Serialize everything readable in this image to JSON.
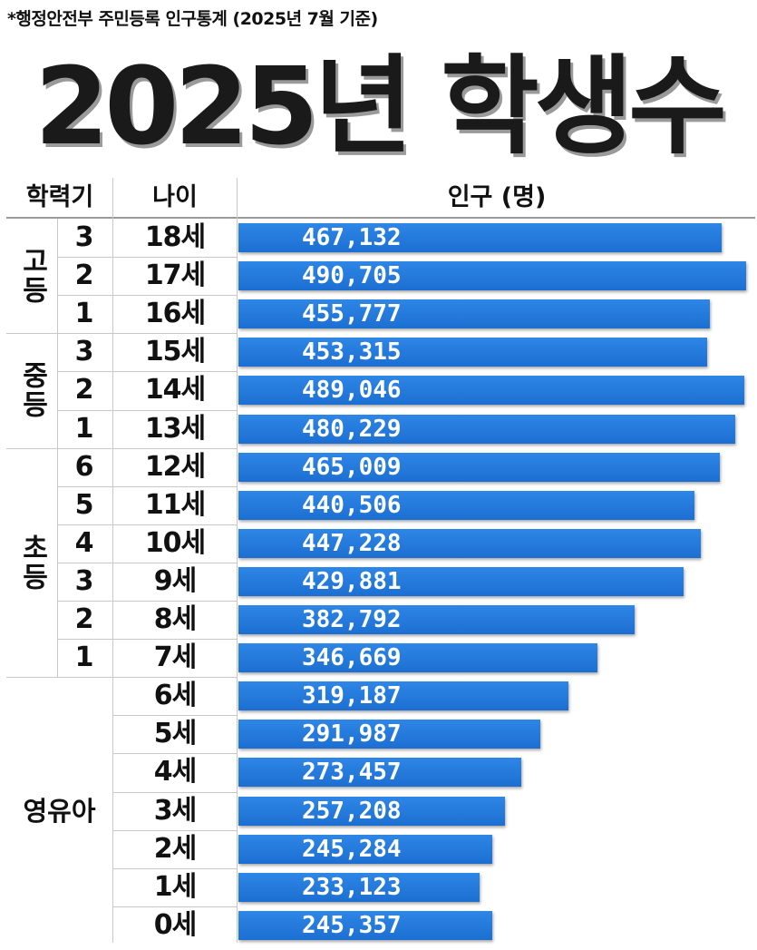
{
  "source_note": "*행정안전부 주민등록 인구통계 (2025년 7월 기준)",
  "title": "2025년 학생수",
  "table": {
    "headers": {
      "grade_level": "학력기",
      "age": "나이",
      "population": "인구 (명)"
    },
    "groups": [
      {
        "label": "고등",
        "vertical": true
      },
      {
        "label": "중등",
        "vertical": true
      },
      {
        "label": "초등",
        "vertical": true
      },
      {
        "label": "영유아",
        "vertical": false
      }
    ]
  },
  "chart_data": {
    "type": "bar",
    "orientation": "horizontal",
    "title": "2025년 학생수",
    "xlabel": "인구 (명)",
    "ylabel": "나이",
    "xlim": [
      0,
      490705
    ],
    "categories": [
      "18세",
      "17세",
      "16세",
      "15세",
      "14세",
      "13세",
      "12세",
      "11세",
      "10세",
      "9세",
      "8세",
      "7세",
      "6세",
      "5세",
      "4세",
      "3세",
      "2세",
      "1세",
      "0세"
    ],
    "grades": [
      "3",
      "2",
      "1",
      "3",
      "2",
      "1",
      "6",
      "5",
      "4",
      "3",
      "2",
      "1",
      "",
      "",
      "",
      "",
      "",
      "",
      ""
    ],
    "group_index": [
      0,
      0,
      0,
      1,
      1,
      1,
      2,
      2,
      2,
      2,
      2,
      2,
      3,
      3,
      3,
      3,
      3,
      3,
      3
    ],
    "values": [
      467132,
      490705,
      455777,
      453315,
      489046,
      480229,
      465009,
      440506,
      447228,
      429881,
      382792,
      346669,
      319187,
      291987,
      273457,
      257208,
      245284,
      233123,
      245357
    ],
    "value_labels": [
      "467,132",
      "490,705",
      "455,777",
      "453,315",
      "489,046",
      "480,229",
      "465,009",
      "440,506",
      "447,228",
      "429,881",
      "382,792",
      "346,669",
      "319,187",
      "291,987",
      "273,457",
      "257,208",
      "245,284",
      "233,123",
      "245,357"
    ],
    "bar_color": "#1c6fd2",
    "label_color": "#ffffff"
  }
}
